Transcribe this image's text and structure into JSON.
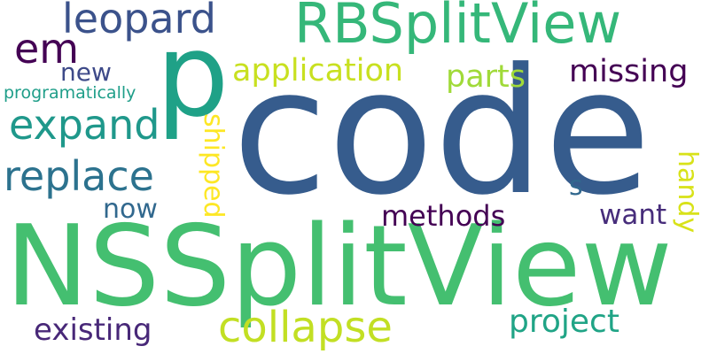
{
  "word_cloud": {
    "background": "#ffffff",
    "words": [
      {
        "id": "code",
        "text": "code",
        "color": "#365c8d",
        "orientation": "horizontal"
      },
      {
        "id": "nssplitview",
        "text": "NSSplitView",
        "color": "#44bf70",
        "orientation": "horizontal"
      },
      {
        "id": "p",
        "text": "p",
        "color": "#1fa187",
        "orientation": "horizontal"
      },
      {
        "id": "rbsplitview",
        "text": "RBSplitView",
        "color": "#35b779",
        "orientation": "horizontal"
      },
      {
        "id": "leopard",
        "text": "leopard",
        "color": "#3b528b",
        "orientation": "horizontal"
      },
      {
        "id": "em",
        "text": "em",
        "color": "#440154",
        "orientation": "horizontal"
      },
      {
        "id": "new",
        "text": "new",
        "color": "#3e4a89",
        "orientation": "horizontal"
      },
      {
        "id": "application",
        "text": "application",
        "color": "#c8e020",
        "orientation": "horizontal"
      },
      {
        "id": "parts",
        "text": "parts",
        "color": "#a0da39",
        "orientation": "horizontal"
      },
      {
        "id": "missing",
        "text": "missing",
        "color": "#440154",
        "orientation": "horizontal"
      },
      {
        "id": "programatically",
        "text": "programatically",
        "color": "#1f9e89",
        "orientation": "horizontal"
      },
      {
        "id": "expand",
        "text": "expand",
        "color": "#1f988b",
        "orientation": "horizontal"
      },
      {
        "id": "replace",
        "text": "replace",
        "color": "#2c728e",
        "orientation": "horizontal"
      },
      {
        "id": "now",
        "text": "now",
        "color": "#31688e",
        "orientation": "horizontal"
      },
      {
        "id": "methods",
        "text": "methods",
        "color": "#440154",
        "orientation": "horizontal"
      },
      {
        "id": "want",
        "text": "want",
        "color": "#472d7b",
        "orientation": "horizontal"
      },
      {
        "id": "s",
        "text": "s",
        "color": "#31688e",
        "orientation": "horizontal"
      },
      {
        "id": "shipped",
        "text": "shipped",
        "color": "#fde725",
        "orientation": "vertical"
      },
      {
        "id": "handy",
        "text": "handy",
        "color": "#d8e219",
        "orientation": "vertical"
      },
      {
        "id": "collapse",
        "text": "collapse",
        "color": "#c2df23",
        "orientation": "horizontal"
      },
      {
        "id": "existing",
        "text": "existing",
        "color": "#482878",
        "orientation": "horizontal"
      },
      {
        "id": "project",
        "text": "project",
        "color": "#20a486",
        "orientation": "horizontal"
      }
    ]
  }
}
